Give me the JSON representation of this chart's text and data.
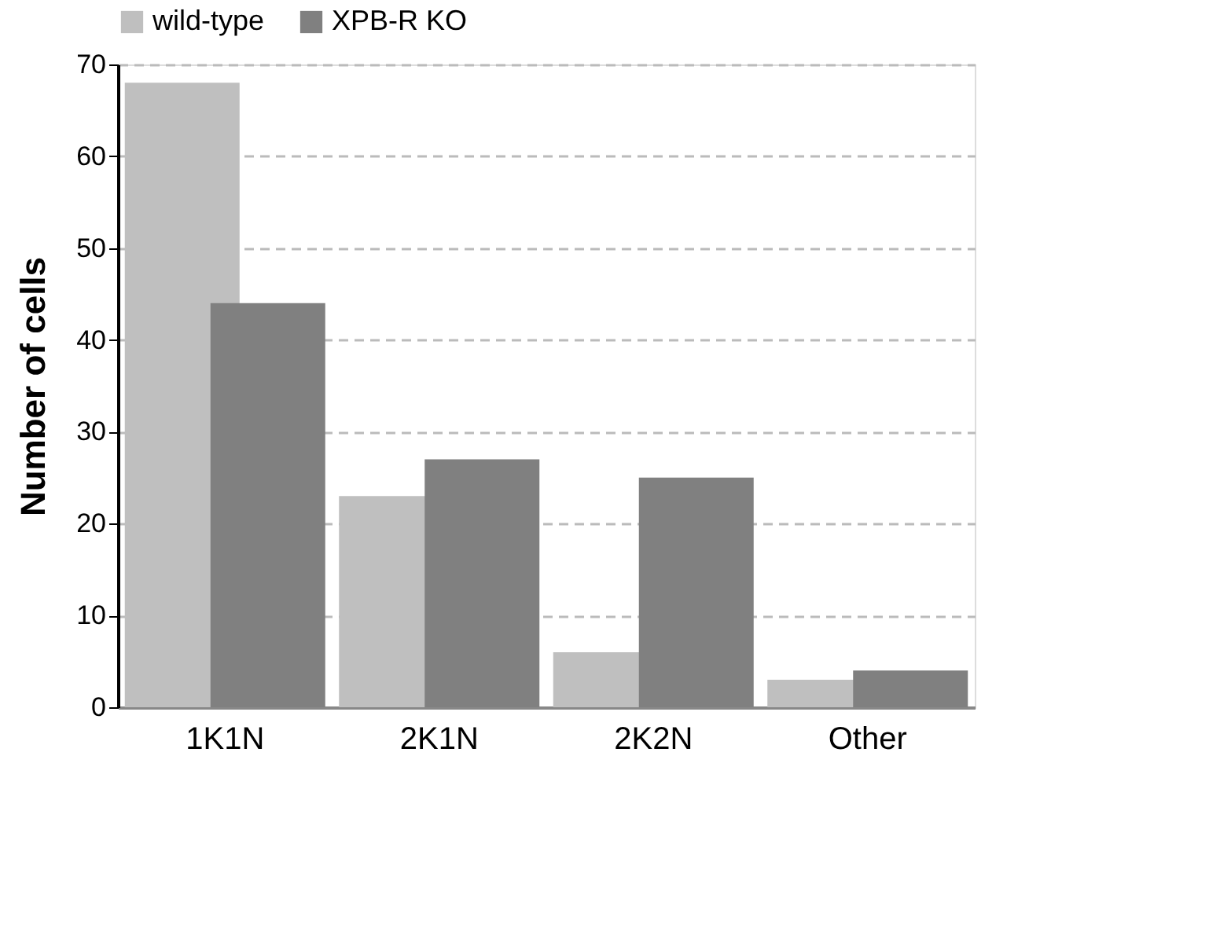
{
  "chart_data": {
    "type": "bar",
    "ylabel": "Number of cells",
    "categories": [
      "1K1N",
      "2K1N",
      "2K2N",
      "Other"
    ],
    "series": [
      {
        "name": "wild-type",
        "color": "#bfbfbf",
        "values": [
          68,
          23,
          6,
          3
        ]
      },
      {
        "name": "XPB-R KO",
        "color": "#808080",
        "values": [
          44,
          27,
          25,
          4
        ]
      }
    ],
    "ylim": [
      0,
      70
    ],
    "yticks": [
      0,
      10,
      20,
      30,
      40,
      50,
      60,
      70
    ],
    "grid": "y",
    "legend": "top"
  }
}
